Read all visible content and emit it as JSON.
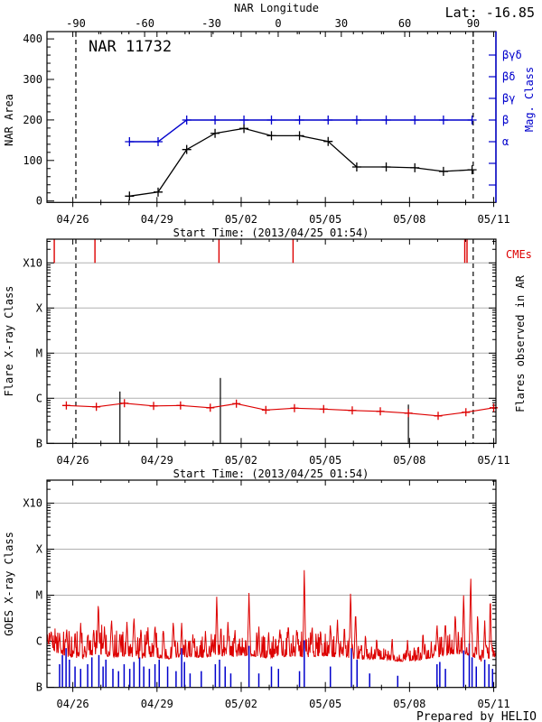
{
  "chart_data": {
    "type": "line",
    "title": "NAR 11732",
    "lat_label": "Lat: -16.85",
    "prepared_by": "Prepared by HELIO",
    "start_time_label": "Start Time: (2013/04/25 01:54)",
    "colors": {
      "accent_red": "#dd0000",
      "accent_blue": "#0000cc",
      "grid": "#b0b0b0",
      "black": "#000000"
    },
    "time_axis": {
      "start": "2013/04/25 01:54",
      "span_days": 16,
      "first_day_tick_offset": 0.921,
      "day_tick_count": 16,
      "major_every_days": 3,
      "major_labels": [
        "04/26",
        "04/29",
        "05/02",
        "05/05",
        "05/08",
        "05/11"
      ]
    },
    "longitude_axis": {
      "title": "NAR Longitude",
      "ticks": [
        {
          "label": "-90",
          "t": 1.03
        },
        {
          "label": "-60",
          "t": 3.48
        },
        {
          "label": "-30",
          "t": 5.86
        },
        {
          "label": "0",
          "t": 8.24
        },
        {
          "label": "30",
          "t": 10.49
        },
        {
          "label": "60",
          "t": 12.75
        },
        {
          "label": "90",
          "t": 15.19
        }
      ]
    },
    "limb_crossing_t": [
      1.03,
      15.19
    ],
    "panels": {
      "top": {
        "ylabel": "NAR Area",
        "ylim": [
          0,
          400
        ],
        "ytick_values": [
          0,
          100,
          200,
          300,
          400
        ],
        "ytick_minor_step": 20,
        "right_ylabel": "Mag. Class",
        "mag_axis_labels": [
          "βγδ",
          "βδ",
          "βγ",
          "β",
          "α",
          "",
          ""
        ],
        "area_series": {
          "t": [
            2.94,
            3.96,
            4.98,
            5.99,
            7.02,
            8.0,
            9.0,
            10.02,
            11.04,
            12.09,
            13.11,
            14.13,
            15.15
          ],
          "area": [
            12,
            22,
            127,
            167,
            179,
            161,
            161,
            147,
            84,
            84,
            82,
            73,
            77
          ]
        },
        "mag_series": {
          "t": [
            2.94,
            3.96,
            4.98,
            5.99,
            7.02,
            8.0,
            9.0,
            10.02,
            11.04,
            12.09,
            13.11,
            14.13,
            15.15
          ],
          "class": [
            "α",
            "α",
            "β",
            "β",
            "β",
            "β",
            "β",
            "β",
            "β",
            "β",
            "β",
            "β",
            "β"
          ]
        }
      },
      "middle": {
        "ylabel": "Flare X-ray Class",
        "decade_labels": [
          "B",
          "C",
          "M",
          "X",
          "X10"
        ],
        "right_label": "Flares observed in AR",
        "cme_label": "CMEs",
        "cme_t": [
          0.26,
          1.71,
          6.13,
          8.77,
          14.89,
          14.97
        ],
        "flares": [
          {
            "t": 2.6,
            "log_flux": -5.85
          },
          {
            "t": 6.18,
            "log_flux": -5.55
          },
          {
            "t": 12.88,
            "log_flux": -6.14
          }
        ],
        "background_series": {
          "t": [
            0.69,
            1.76,
            2.76,
            3.8,
            4.76,
            5.82,
            6.75,
            7.8,
            8.82,
            9.86,
            10.88,
            11.88,
            12.88,
            13.94,
            14.93,
            15.92
          ],
          "log_flux": [
            -6.16,
            -6.19,
            -6.11,
            -6.17,
            -6.16,
            -6.21,
            -6.12,
            -6.26,
            -6.22,
            -6.24,
            -6.27,
            -6.29,
            -6.33,
            -6.39,
            -6.31,
            -6.21
          ]
        }
      },
      "bottom": {
        "ylabel": "GOES X-ray Class",
        "decade_labels": [
          "B",
          "C",
          "M",
          "X",
          "X10"
        ],
        "xray_base_nodes": [
          [
            0,
            -6.0
          ],
          [
            0.3,
            -6.2
          ],
          [
            0.8,
            -6.3
          ],
          [
            1.3,
            -6.33
          ],
          [
            1.8,
            -6.22
          ],
          [
            2.3,
            -6.3
          ],
          [
            2.8,
            -6.28
          ],
          [
            3.3,
            -6.32
          ],
          [
            3.8,
            -6.3
          ],
          [
            4.3,
            -6.35
          ],
          [
            4.8,
            -6.3
          ],
          [
            5.3,
            -6.32
          ],
          [
            5.8,
            -6.3
          ],
          [
            6.3,
            -6.28
          ],
          [
            6.8,
            -6.3
          ],
          [
            7.3,
            -6.28
          ],
          [
            7.8,
            -6.32
          ],
          [
            8.3,
            -6.3
          ],
          [
            8.8,
            -6.28
          ],
          [
            9.3,
            -6.3
          ],
          [
            9.8,
            -6.28
          ],
          [
            10.3,
            -6.3
          ],
          [
            10.8,
            -6.33
          ],
          [
            11.3,
            -6.38
          ],
          [
            11.8,
            -6.36
          ],
          [
            12.3,
            -6.4
          ],
          [
            12.8,
            -6.42
          ],
          [
            13.3,
            -6.38
          ],
          [
            13.8,
            -6.32
          ],
          [
            14.3,
            -6.25
          ],
          [
            14.8,
            -6.22
          ],
          [
            15.2,
            -6.3
          ],
          [
            15.5,
            -6.42
          ],
          [
            15.92,
            -6.3
          ]
        ],
        "xray_noise_nodes": [
          [
            0,
            0.25
          ],
          [
            0.5,
            0.3
          ],
          [
            1,
            0.32
          ],
          [
            1.5,
            0.3
          ],
          [
            2,
            0.35
          ],
          [
            2.5,
            0.32
          ],
          [
            3,
            0.3
          ],
          [
            3.5,
            0.32
          ],
          [
            4,
            0.3
          ],
          [
            4.5,
            0.28
          ],
          [
            5,
            0.22
          ],
          [
            5.5,
            0.25
          ],
          [
            6,
            0.28
          ],
          [
            6.5,
            0.25
          ],
          [
            7,
            0.22
          ],
          [
            7.5,
            0.28
          ],
          [
            8,
            0.3
          ],
          [
            8.5,
            0.28
          ],
          [
            9,
            0.3
          ],
          [
            9.5,
            0.28
          ],
          [
            10,
            0.25
          ],
          [
            10.5,
            0.28
          ],
          [
            11,
            0.2
          ],
          [
            11.5,
            0.15
          ],
          [
            12,
            0.13
          ],
          [
            12.5,
            0.15
          ],
          [
            13,
            0.15
          ],
          [
            13.5,
            0.18
          ],
          [
            14,
            0.28
          ],
          [
            14.5,
            0.3
          ],
          [
            15,
            0.3
          ],
          [
            15.5,
            0.2
          ],
          [
            15.92,
            0.25
          ]
        ],
        "xray_spikes": [
          [
            0.15,
            -5.75,
            0.05
          ],
          [
            0.45,
            -5.8,
            0.04
          ],
          [
            0.7,
            -5.7,
            0.05
          ],
          [
            1.0,
            -5.85,
            0.04
          ],
          [
            1.2,
            -5.6,
            0.05
          ],
          [
            1.45,
            -5.8,
            0.04
          ],
          [
            1.66,
            -5.7,
            0.04
          ],
          [
            1.83,
            -5.1,
            0.05
          ],
          [
            2.05,
            -5.65,
            0.04
          ],
          [
            2.3,
            -5.5,
            0.06
          ],
          [
            2.6,
            -5.75,
            0.04
          ],
          [
            2.85,
            -5.55,
            0.05
          ],
          [
            3.1,
            -5.45,
            0.06
          ],
          [
            3.35,
            -5.65,
            0.04
          ],
          [
            3.6,
            -5.7,
            0.04
          ],
          [
            3.85,
            -5.6,
            0.05
          ],
          [
            4.15,
            -5.7,
            0.05
          ],
          [
            4.5,
            -5.55,
            0.06
          ],
          [
            4.8,
            -5.6,
            0.05
          ],
          [
            5.2,
            -5.85,
            0.04
          ],
          [
            5.65,
            -5.75,
            0.04
          ],
          [
            6.05,
            -4.98,
            0.05
          ],
          [
            6.2,
            -5.6,
            0.04
          ],
          [
            6.45,
            -5.55,
            0.05
          ],
          [
            6.7,
            -5.7,
            0.04
          ],
          [
            7.2,
            -4.95,
            0.06
          ],
          [
            7.55,
            -5.65,
            0.04
          ],
          [
            7.9,
            -5.75,
            0.04
          ],
          [
            8.3,
            -5.7,
            0.05
          ],
          [
            8.6,
            -5.6,
            0.05
          ],
          [
            8.9,
            -5.7,
            0.04
          ],
          [
            9.17,
            -4.38,
            0.05
          ],
          [
            9.45,
            -5.6,
            0.04
          ],
          [
            9.75,
            -5.7,
            0.04
          ],
          [
            10.1,
            -5.6,
            0.05
          ],
          [
            10.35,
            -5.5,
            0.05
          ],
          [
            10.6,
            -5.6,
            0.04
          ],
          [
            10.82,
            -4.85,
            0.05
          ],
          [
            11.0,
            -5.3,
            0.05
          ],
          [
            11.35,
            -5.8,
            0.04
          ],
          [
            11.75,
            -5.9,
            0.04
          ],
          [
            12.3,
            -5.9,
            0.04
          ],
          [
            12.85,
            -5.95,
            0.04
          ],
          [
            13.4,
            -5.75,
            0.04
          ],
          [
            13.9,
            -5.6,
            0.05
          ],
          [
            14.2,
            -5.55,
            0.05
          ],
          [
            14.55,
            -5.35,
            0.05
          ],
          [
            14.85,
            -4.95,
            0.05
          ],
          [
            15.1,
            -4.5,
            0.05
          ],
          [
            15.35,
            -5.3,
            0.04
          ],
          [
            15.6,
            -5.55,
            0.05
          ],
          [
            15.8,
            -4.9,
            0.04
          ]
        ],
        "secondary_spikes": [
          [
            0.45,
            -6.5
          ],
          [
            0.55,
            -6.3
          ],
          [
            0.68,
            -6.15
          ],
          [
            0.8,
            -6.4
          ],
          [
            1.0,
            -6.55
          ],
          [
            1.2,
            -6.6
          ],
          [
            1.45,
            -6.5
          ],
          [
            1.6,
            -6.35
          ],
          [
            1.85,
            -6.3
          ],
          [
            2.0,
            -6.55
          ],
          [
            2.1,
            -6.4
          ],
          [
            2.35,
            -6.6
          ],
          [
            2.55,
            -6.65
          ],
          [
            2.75,
            -6.5
          ],
          [
            2.95,
            -6.6
          ],
          [
            3.1,
            -6.45
          ],
          [
            3.3,
            -6.35
          ],
          [
            3.45,
            -6.55
          ],
          [
            3.65,
            -6.6
          ],
          [
            3.85,
            -6.5
          ],
          [
            4.0,
            -6.4
          ],
          [
            4.3,
            -6.55
          ],
          [
            4.6,
            -6.65
          ],
          [
            4.8,
            -6.15
          ],
          [
            4.9,
            -6.45
          ],
          [
            5.1,
            -6.7
          ],
          [
            5.5,
            -6.65
          ],
          [
            6.0,
            -6.5
          ],
          [
            6.15,
            -6.4
          ],
          [
            6.35,
            -6.55
          ],
          [
            6.55,
            -6.7
          ],
          [
            7.2,
            -6.1
          ],
          [
            7.55,
            -6.7
          ],
          [
            8.0,
            -6.55
          ],
          [
            8.25,
            -6.6
          ],
          [
            9.0,
            -6.65
          ],
          [
            9.17,
            -5.98
          ],
          [
            10.1,
            -6.55
          ],
          [
            10.85,
            -6.15
          ],
          [
            11.05,
            -6.4
          ],
          [
            11.5,
            -6.7
          ],
          [
            12.5,
            -6.75
          ],
          [
            13.9,
            -6.5
          ],
          [
            14.0,
            -6.45
          ],
          [
            14.2,
            -6.6
          ],
          [
            14.85,
            -6.2
          ],
          [
            15.05,
            -6.05
          ],
          [
            15.15,
            -6.35
          ],
          [
            15.3,
            -6.55
          ],
          [
            15.6,
            -6.4
          ],
          [
            15.75,
            -6.5
          ],
          [
            15.88,
            -6.6
          ]
        ]
      }
    }
  }
}
